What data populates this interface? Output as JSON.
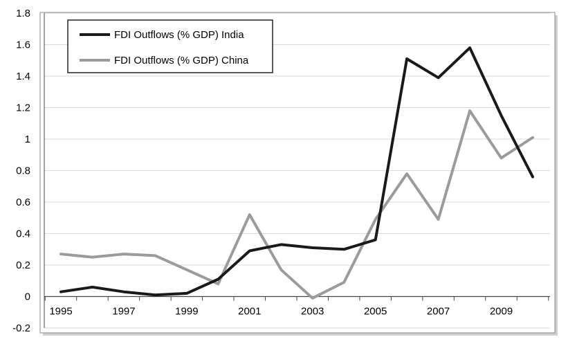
{
  "chart_data": {
    "type": "line",
    "title": "",
    "xlabel": "",
    "ylabel": "",
    "x": [
      1995,
      1996,
      1997,
      1998,
      1999,
      2000,
      2001,
      2002,
      2003,
      2004,
      2005,
      2006,
      2007,
      2008,
      2009,
      2010
    ],
    "x_tick_labels": [
      "1995",
      "1997",
      "1999",
      "2001",
      "2003",
      "2005",
      "2007",
      "2009"
    ],
    "y_tick_labels": [
      "-0.2",
      "0",
      "0.2",
      "0.4",
      "0.6",
      "0.8",
      "1",
      "1.2",
      "1.4",
      "1.6",
      "1.8"
    ],
    "ylim": [
      -0.2,
      1.8
    ],
    "grid": true,
    "legend_position": "top-left",
    "series": [
      {
        "name": "FDI Outflows (% GDP) India",
        "color": "#1a1a1a",
        "values": [
          0.03,
          0.06,
          0.03,
          0.01,
          0.02,
          0.11,
          0.29,
          0.33,
          0.31,
          0.3,
          0.36,
          1.51,
          1.39,
          1.58,
          1.15,
          0.76
        ]
      },
      {
        "name": "FDI Outflows (% GDP) China",
        "color": "#9b9b9b",
        "values": [
          0.27,
          0.25,
          0.27,
          0.26,
          0.17,
          0.08,
          0.52,
          0.17,
          -0.01,
          0.09,
          0.49,
          0.78,
          0.49,
          1.18,
          0.88,
          1.01
        ]
      }
    ]
  }
}
